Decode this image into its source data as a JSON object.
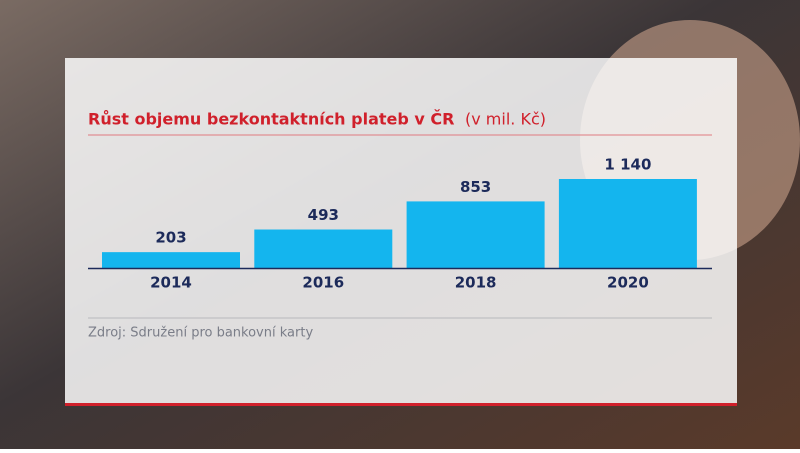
{
  "chart_data": {
    "type": "bar",
    "title": "Růst objemu bezkontaktních plateb v ČR",
    "subtitle": "(v mil. Kč)",
    "categories": [
      "2014",
      "2016",
      "2018",
      "2020"
    ],
    "values": [
      203,
      493,
      853,
      1140
    ],
    "value_labels": [
      "203",
      "493",
      "853",
      "1 140"
    ],
    "color": "#14b5ee",
    "source": "Zdroj: Sdružení pro bankovní karty"
  }
}
